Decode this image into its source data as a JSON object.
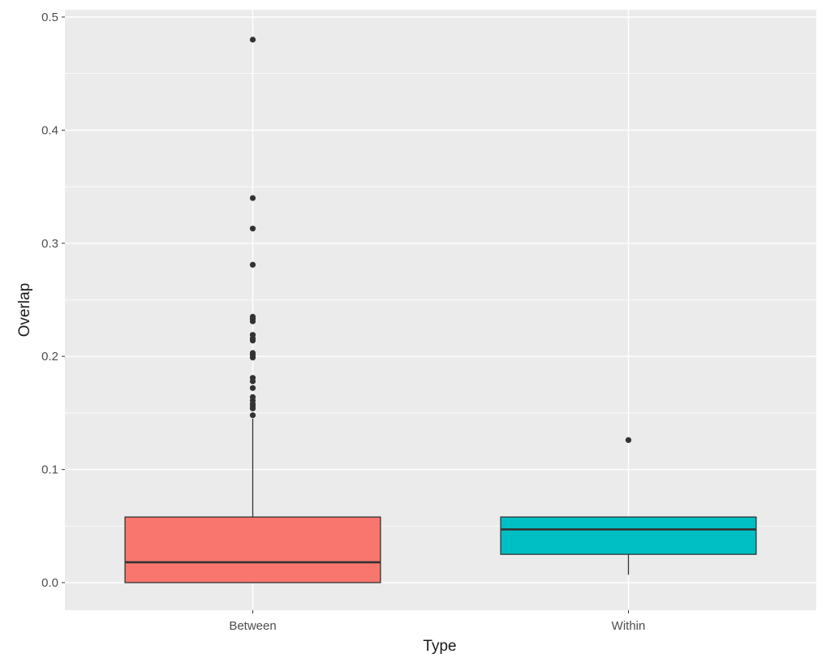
{
  "chart_data": {
    "type": "boxplot",
    "title": "",
    "xlabel": "Type",
    "ylabel": "Overlap",
    "ylim": [
      -0.025,
      0.5
    ],
    "y_ticks": [
      "0.0",
      "0.1",
      "0.2",
      "0.3",
      "0.4",
      "0.5"
    ],
    "grid": true,
    "background_color": "#ebebeb",
    "grid_color": "#ffffff",
    "categories": [
      "Between",
      "Within"
    ],
    "series": [
      {
        "category": "Between",
        "color": "#f8766d",
        "min": 0.0,
        "q1": 0.0,
        "median": 0.018,
        "q3": 0.058,
        "whisker_high": 0.145,
        "outliers": [
          0.148,
          0.154,
          0.156,
          0.158,
          0.161,
          0.164,
          0.172,
          0.178,
          0.181,
          0.199,
          0.201,
          0.203,
          0.214,
          0.216,
          0.219,
          0.231,
          0.233,
          0.235,
          0.281,
          0.313,
          0.34,
          0.48
        ]
      },
      {
        "category": "Within",
        "color": "#00bfc4",
        "min": 0.007,
        "q1": 0.025,
        "median": 0.047,
        "q3": 0.058,
        "whisker_high": 0.058,
        "outliers": [
          0.126
        ]
      }
    ]
  }
}
